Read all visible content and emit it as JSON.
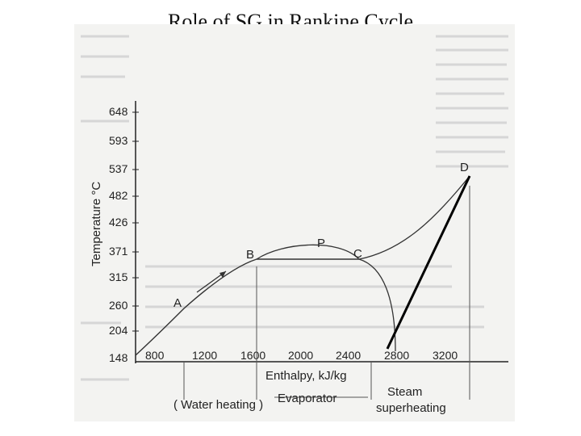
{
  "title": "Role of SG in Rankine Cycle",
  "diagram": {
    "y_axis_label": "Temperature °C",
    "x_axis_label": "Enthalpy, kJ/kg",
    "y_ticks": [
      "648",
      "593",
      "537",
      "482",
      "426",
      "371",
      "315",
      "260",
      "204",
      "148"
    ],
    "x_ticks": [
      "800",
      "1200",
      "1600",
      "2000",
      "2400",
      "2800",
      "3200"
    ],
    "points": [
      "A",
      "B",
      "P",
      "C",
      "D"
    ],
    "regions": {
      "water_heating": "( Water heating )",
      "evaporator": "Evaporator",
      "steam_line1": "Steam",
      "steam_line2": "superheating"
    }
  }
}
